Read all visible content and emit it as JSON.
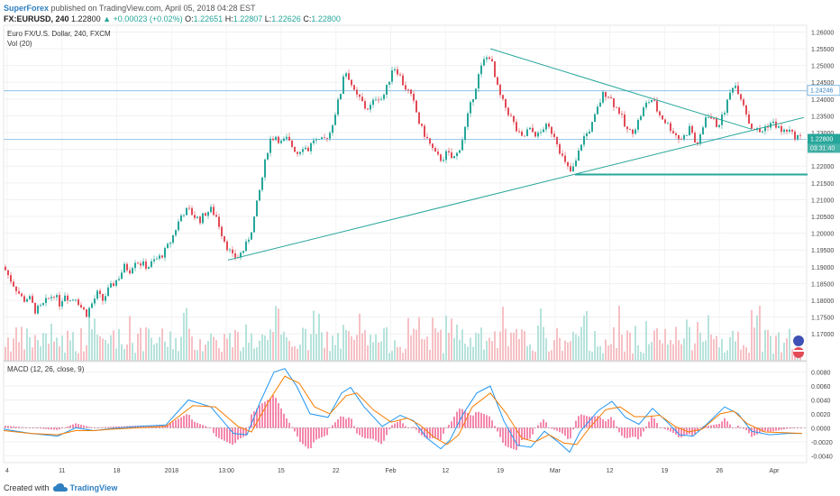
{
  "header": {
    "publisher": "SuperForex",
    "published_text": "published on TradingView.com, April 05, 2018 04:28 EST",
    "symbol": "FX:EURUSD, 240",
    "last": "1.22800",
    "change": "+0.00023 (+0.02%)",
    "o_label": "O:",
    "o": "1.22651",
    "h_label": "H:",
    "h": "1.22807",
    "l_label": "L:",
    "l": "1.22626",
    "c_label": "C:",
    "c": "1.22800"
  },
  "footer": {
    "created_with": "Created with",
    "brand": "TradingView"
  },
  "colors": {
    "up": "#26a69a",
    "down": "#e24a56",
    "macd": "#2196f3",
    "signal": "#f57c00",
    "hist": "#e91e63",
    "trend": "#26a69a"
  },
  "chart_data": [
    {
      "type": "candlestick",
      "title": "Euro FX/U.S. Dollar, 240, FXCM",
      "volume_label": "Vol (20)",
      "x_tick_labels": [
        "4",
        "11",
        "18",
        "2018",
        "13:00",
        "15",
        "22",
        "Feb",
        "12",
        "19",
        "Mar",
        "12",
        "19",
        "26",
        "Apr"
      ],
      "ylim": [
        1.162,
        1.262
      ],
      "y_ticks": [
        "1.26000",
        "1.25500",
        "1.25000",
        "1.24500",
        "1.24000",
        "1.23500",
        "1.23000",
        "1.22500",
        "1.22000",
        "1.21500",
        "1.21000",
        "1.20500",
        "1.20000",
        "1.19500",
        "1.19000",
        "1.18500",
        "1.18000",
        "1.17500",
        "1.17000"
      ],
      "close_path": [
        [
          0,
          1.19
        ],
        [
          8,
          1.186
        ],
        [
          15,
          1.183
        ],
        [
          22,
          1.18
        ],
        [
          28,
          1.181
        ],
        [
          35,
          1.177
        ],
        [
          42,
          1.178
        ],
        [
          48,
          1.18
        ],
        [
          56,
          1.182
        ],
        [
          62,
          1.179
        ],
        [
          68,
          1.182
        ],
        [
          74,
          1.18
        ],
        [
          80,
          1.181
        ],
        [
          86,
          1.178
        ],
        [
          92,
          1.176
        ],
        [
          98,
          1.179
        ],
        [
          104,
          1.182
        ],
        [
          110,
          1.18
        ],
        [
          116,
          1.183
        ],
        [
          122,
          1.185
        ],
        [
          128,
          1.187
        ],
        [
          134,
          1.19
        ],
        [
          140,
          1.189
        ],
        [
          146,
          1.192
        ],
        [
          152,
          1.191
        ],
        [
          160,
          1.19
        ],
        [
          168,
          1.192
        ],
        [
          174,
          1.193
        ],
        [
          180,
          1.195
        ],
        [
          186,
          1.198
        ],
        [
          192,
          1.202
        ],
        [
          198,
          1.206
        ],
        [
          205,
          1.207
        ],
        [
          212,
          1.205
        ],
        [
          218,
          1.204
        ],
        [
          224,
          1.206
        ],
        [
          230,
          1.207
        ],
        [
          236,
          1.205
        ],
        [
          242,
          1.2
        ],
        [
          248,
          1.196
        ],
        [
          254,
          1.193
        ],
        [
          260,
          1.193
        ],
        [
          266,
          1.195
        ],
        [
          270,
          1.197
        ],
        [
          276,
          1.202
        ],
        [
          282,
          1.21
        ],
        [
          288,
          1.218
        ],
        [
          292,
          1.224
        ],
        [
          296,
          1.228
        ],
        [
          302,
          1.229
        ],
        [
          308,
          1.227
        ],
        [
          314,
          1.228
        ],
        [
          320,
          1.226
        ],
        [
          326,
          1.224
        ],
        [
          332,
          1.226
        ],
        [
          338,
          1.225
        ],
        [
          344,
          1.228
        ],
        [
          350,
          1.227
        ],
        [
          356,
          1.228
        ],
        [
          362,
          1.23
        ],
        [
          368,
          1.236
        ],
        [
          374,
          1.242
        ],
        [
          378,
          1.249
        ],
        [
          384,
          1.246
        ],
        [
          390,
          1.241
        ],
        [
          396,
          1.24
        ],
        [
          402,
          1.237
        ],
        [
          408,
          1.238
        ],
        [
          414,
          1.241
        ],
        [
          420,
          1.24
        ],
        [
          426,
          1.244
        ],
        [
          432,
          1.25
        ],
        [
          438,
          1.248
        ],
        [
          444,
          1.244
        ],
        [
          450,
          1.242
        ],
        [
          456,
          1.238
        ],
        [
          462,
          1.232
        ],
        [
          468,
          1.229
        ],
        [
          474,
          1.226
        ],
        [
          480,
          1.223
        ],
        [
          486,
          1.222
        ],
        [
          492,
          1.224
        ],
        [
          498,
          1.222
        ],
        [
          504,
          1.224
        ],
        [
          510,
          1.229
        ],
        [
          516,
          1.236
        ],
        [
          522,
          1.242
        ],
        [
          528,
          1.248
        ],
        [
          534,
          1.252
        ],
        [
          540,
          1.253
        ],
        [
          546,
          1.245
        ],
        [
          552,
          1.24
        ],
        [
          558,
          1.237
        ],
        [
          564,
          1.234
        ],
        [
          570,
          1.23
        ],
        [
          576,
          1.228
        ],
        [
          582,
          1.231
        ],
        [
          588,
          1.23
        ],
        [
          594,
          1.229
        ],
        [
          600,
          1.232
        ],
        [
          606,
          1.231
        ],
        [
          612,
          1.229
        ],
        [
          618,
          1.224
        ],
        [
          624,
          1.22
        ],
        [
          630,
          1.218
        ],
        [
          636,
          1.222
        ],
        [
          642,
          1.228
        ],
        [
          648,
          1.23
        ],
        [
          654,
          1.233
        ],
        [
          660,
          1.238
        ],
        [
          666,
          1.242
        ],
        [
          672,
          1.241
        ],
        [
          678,
          1.238
        ],
        [
          684,
          1.236
        ],
        [
          690,
          1.231
        ],
        [
          696,
          1.23
        ],
        [
          702,
          1.232
        ],
        [
          708,
          1.236
        ],
        [
          714,
          1.239
        ],
        [
          720,
          1.24
        ],
        [
          726,
          1.236
        ],
        [
          732,
          1.234
        ],
        [
          738,
          1.232
        ],
        [
          744,
          1.23
        ],
        [
          750,
          1.228
        ],
        [
          756,
          1.229
        ],
        [
          762,
          1.232
        ],
        [
          768,
          1.226
        ],
        [
          774,
          1.229
        ],
        [
          780,
          1.236
        ],
        [
          786,
          1.234
        ],
        [
          792,
          1.232
        ],
        [
          798,
          1.235
        ],
        [
          804,
          1.24
        ],
        [
          810,
          1.245
        ],
        [
          816,
          1.242
        ],
        [
          822,
          1.238
        ],
        [
          828,
          1.232
        ],
        [
          834,
          1.231
        ],
        [
          840,
          1.23
        ],
        [
          846,
          1.232
        ],
        [
          852,
          1.233
        ],
        [
          858,
          1.232
        ],
        [
          864,
          1.23
        ],
        [
          870,
          1.231
        ],
        [
          876,
          1.229
        ],
        [
          880,
          1.229
        ],
        [
          886,
          1.228
        ]
      ],
      "horizontal_lines": [
        1.24246,
        1.228
      ],
      "price_labels": [
        {
          "price": "1.24246",
          "value": 1.24246,
          "style": "outline"
        },
        {
          "price": "1.22800",
          "value": 1.228,
          "style": "filled"
        }
      ],
      "countdown": "03:31:40",
      "trendlines": [
        {
          "from": [
            249,
            1.192
          ],
          "to": [
            888,
            1.2345
          ]
        },
        {
          "from": [
            540,
            1.255
          ],
          "to": [
            830,
            1.231
          ]
        },
        {
          "from": [
            634,
            1.2175
          ],
          "to": [
            892,
            1.2175
          ]
        }
      ]
    },
    {
      "type": "line",
      "title": "MACD (12, 26, close, 9)",
      "ylim": [
        -0.005,
        0.0095
      ],
      "y_ticks": [
        "0.0080",
        "0.0060",
        "0.0040",
        "0.0020",
        "0.0000",
        "-0.0020",
        "-0.0040"
      ],
      "series": [
        {
          "values": [
            [
              0,
              -0.0002
            ],
            [
              30,
              -0.0008
            ],
            [
              60,
              -0.0012
            ],
            [
              80,
              0.0
            ],
            [
              100,
              -0.0004
            ],
            [
              120,
              -0.0001
            ],
            [
              150,
              0.0002
            ],
            [
              180,
              0.0004
            ],
            [
              205,
              0.004
            ],
            [
              230,
              0.003
            ],
            [
              255,
              -0.0008
            ],
            [
              270,
              -0.001
            ],
            [
              285,
              0.0038
            ],
            [
              300,
              0.008
            ],
            [
              312,
              0.0085
            ],
            [
              325,
              0.006
            ],
            [
              340,
              0.002
            ],
            [
              360,
              0.0015
            ],
            [
              375,
              0.005
            ],
            [
              385,
              0.0058
            ],
            [
              400,
              0.003
            ],
            [
              420,
              0.0002
            ],
            [
              440,
              0.0018
            ],
            [
              455,
              0.001
            ],
            [
              470,
              -0.0015
            ],
            [
              485,
              -0.003
            ],
            [
              495,
              -0.0018
            ],
            [
              510,
              0.002
            ],
            [
              525,
              0.005
            ],
            [
              540,
              0.006
            ],
            [
              555,
              0.001
            ],
            [
              570,
              -0.0025
            ],
            [
              585,
              -0.0028
            ],
            [
              600,
              -0.0005
            ],
            [
              615,
              -0.002
            ],
            [
              628,
              -0.0035
            ],
            [
              640,
              -0.0005
            ],
            [
              660,
              0.0025
            ],
            [
              675,
              0.0038
            ],
            [
              690,
              0.0015
            ],
            [
              705,
              0.0005
            ],
            [
              720,
              0.0028
            ],
            [
              735,
              0.001
            ],
            [
              750,
              -0.001
            ],
            [
              765,
              -0.0012
            ],
            [
              780,
              0.0005
            ],
            [
              800,
              0.003
            ],
            [
              815,
              0.002
            ],
            [
              830,
              -0.0005
            ],
            [
              850,
              -0.001
            ],
            [
              870,
              -0.0008
            ],
            [
              886,
              -0.0008
            ]
          ]
        },
        {
          "values": [
            [
              0,
              -0.0004
            ],
            [
              30,
              -0.0008
            ],
            [
              60,
              -0.001
            ],
            [
              80,
              -0.0004
            ],
            [
              100,
              -0.0004
            ],
            [
              120,
              -0.0002
            ],
            [
              150,
              0.0
            ],
            [
              180,
              0.0002
            ],
            [
              210,
              0.0032
            ],
            [
              235,
              0.003
            ],
            [
              260,
              0.0002
            ],
            [
              275,
              -0.0006
            ],
            [
              295,
              0.004
            ],
            [
              312,
              0.0074
            ],
            [
              328,
              0.0064
            ],
            [
              345,
              0.003
            ],
            [
              362,
              0.002
            ],
            [
              380,
              0.0046
            ],
            [
              392,
              0.005
            ],
            [
              410,
              0.0026
            ],
            [
              430,
              0.0008
            ],
            [
              448,
              0.0014
            ],
            [
              462,
              0.0004
            ],
            [
              478,
              -0.0014
            ],
            [
              492,
              -0.0024
            ],
            [
              505,
              -0.001
            ],
            [
              520,
              0.003
            ],
            [
              540,
              0.005
            ],
            [
              558,
              0.002
            ],
            [
              575,
              -0.0015
            ],
            [
              590,
              -0.002
            ],
            [
              605,
              -0.001
            ],
            [
              622,
              -0.0022
            ],
            [
              636,
              -0.0024
            ],
            [
              650,
              0.0
            ],
            [
              668,
              0.0026
            ],
            [
              684,
              0.003
            ],
            [
              700,
              0.0016
            ],
            [
              714,
              0.0016
            ],
            [
              728,
              0.0018
            ],
            [
              745,
              0.0002
            ],
            [
              760,
              -0.0006
            ],
            [
              775,
              -0.0002
            ],
            [
              795,
              0.002
            ],
            [
              810,
              0.0024
            ],
            [
              825,
              0.0006
            ],
            [
              845,
              -0.0006
            ],
            [
              865,
              -0.0007
            ],
            [
              886,
              -0.0008
            ]
          ]
        }
      ]
    }
  ]
}
